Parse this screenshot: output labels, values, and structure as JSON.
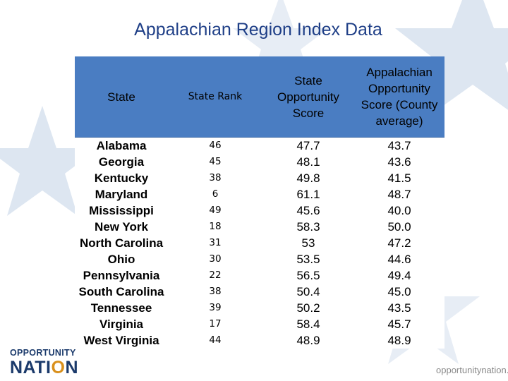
{
  "title": "Appalachian Region Index Data",
  "logo": {
    "line1": "OPPORTUNITY",
    "line2_a": "NATI",
    "line2_o": "O",
    "line2_b": "N"
  },
  "footer_url": "opportunitynation.org",
  "table": {
    "headers": [
      "State",
      "State Rank",
      "State Opportunity Score",
      "Appalachian Opportunity Score (County average)"
    ],
    "rows": [
      [
        "Alabama",
        "46",
        "47.7",
        "43.7"
      ],
      [
        "Georgia",
        "45",
        "48.1",
        "43.6"
      ],
      [
        "Kentucky",
        "38",
        "49.8",
        "41.5"
      ],
      [
        "Maryland",
        "6",
        "61.1",
        "48.7"
      ],
      [
        "Mississippi",
        "49",
        "45.6",
        "40.0"
      ],
      [
        "New York",
        "18",
        "58.3",
        "50.0"
      ],
      [
        "North Carolina",
        "31",
        "53",
        "47.2"
      ],
      [
        "Ohio",
        "30",
        "53.5",
        "44.6"
      ],
      [
        "Pennsylvania",
        "22",
        "56.5",
        "49.4"
      ],
      [
        "South Carolina",
        "38",
        "50.4",
        "45.0"
      ],
      [
        "Tennessee",
        "39",
        "50.2",
        "43.5"
      ],
      [
        "Virginia",
        "17",
        "58.4",
        "45.7"
      ],
      [
        "West Virginia",
        "44",
        "48.9",
        "48.9"
      ]
    ]
  },
  "colors": {
    "header_bg": "#4a7dc2",
    "title": "#1f3f87",
    "logo_blue": "#1b3a6b",
    "logo_orange": "#d9901c"
  }
}
